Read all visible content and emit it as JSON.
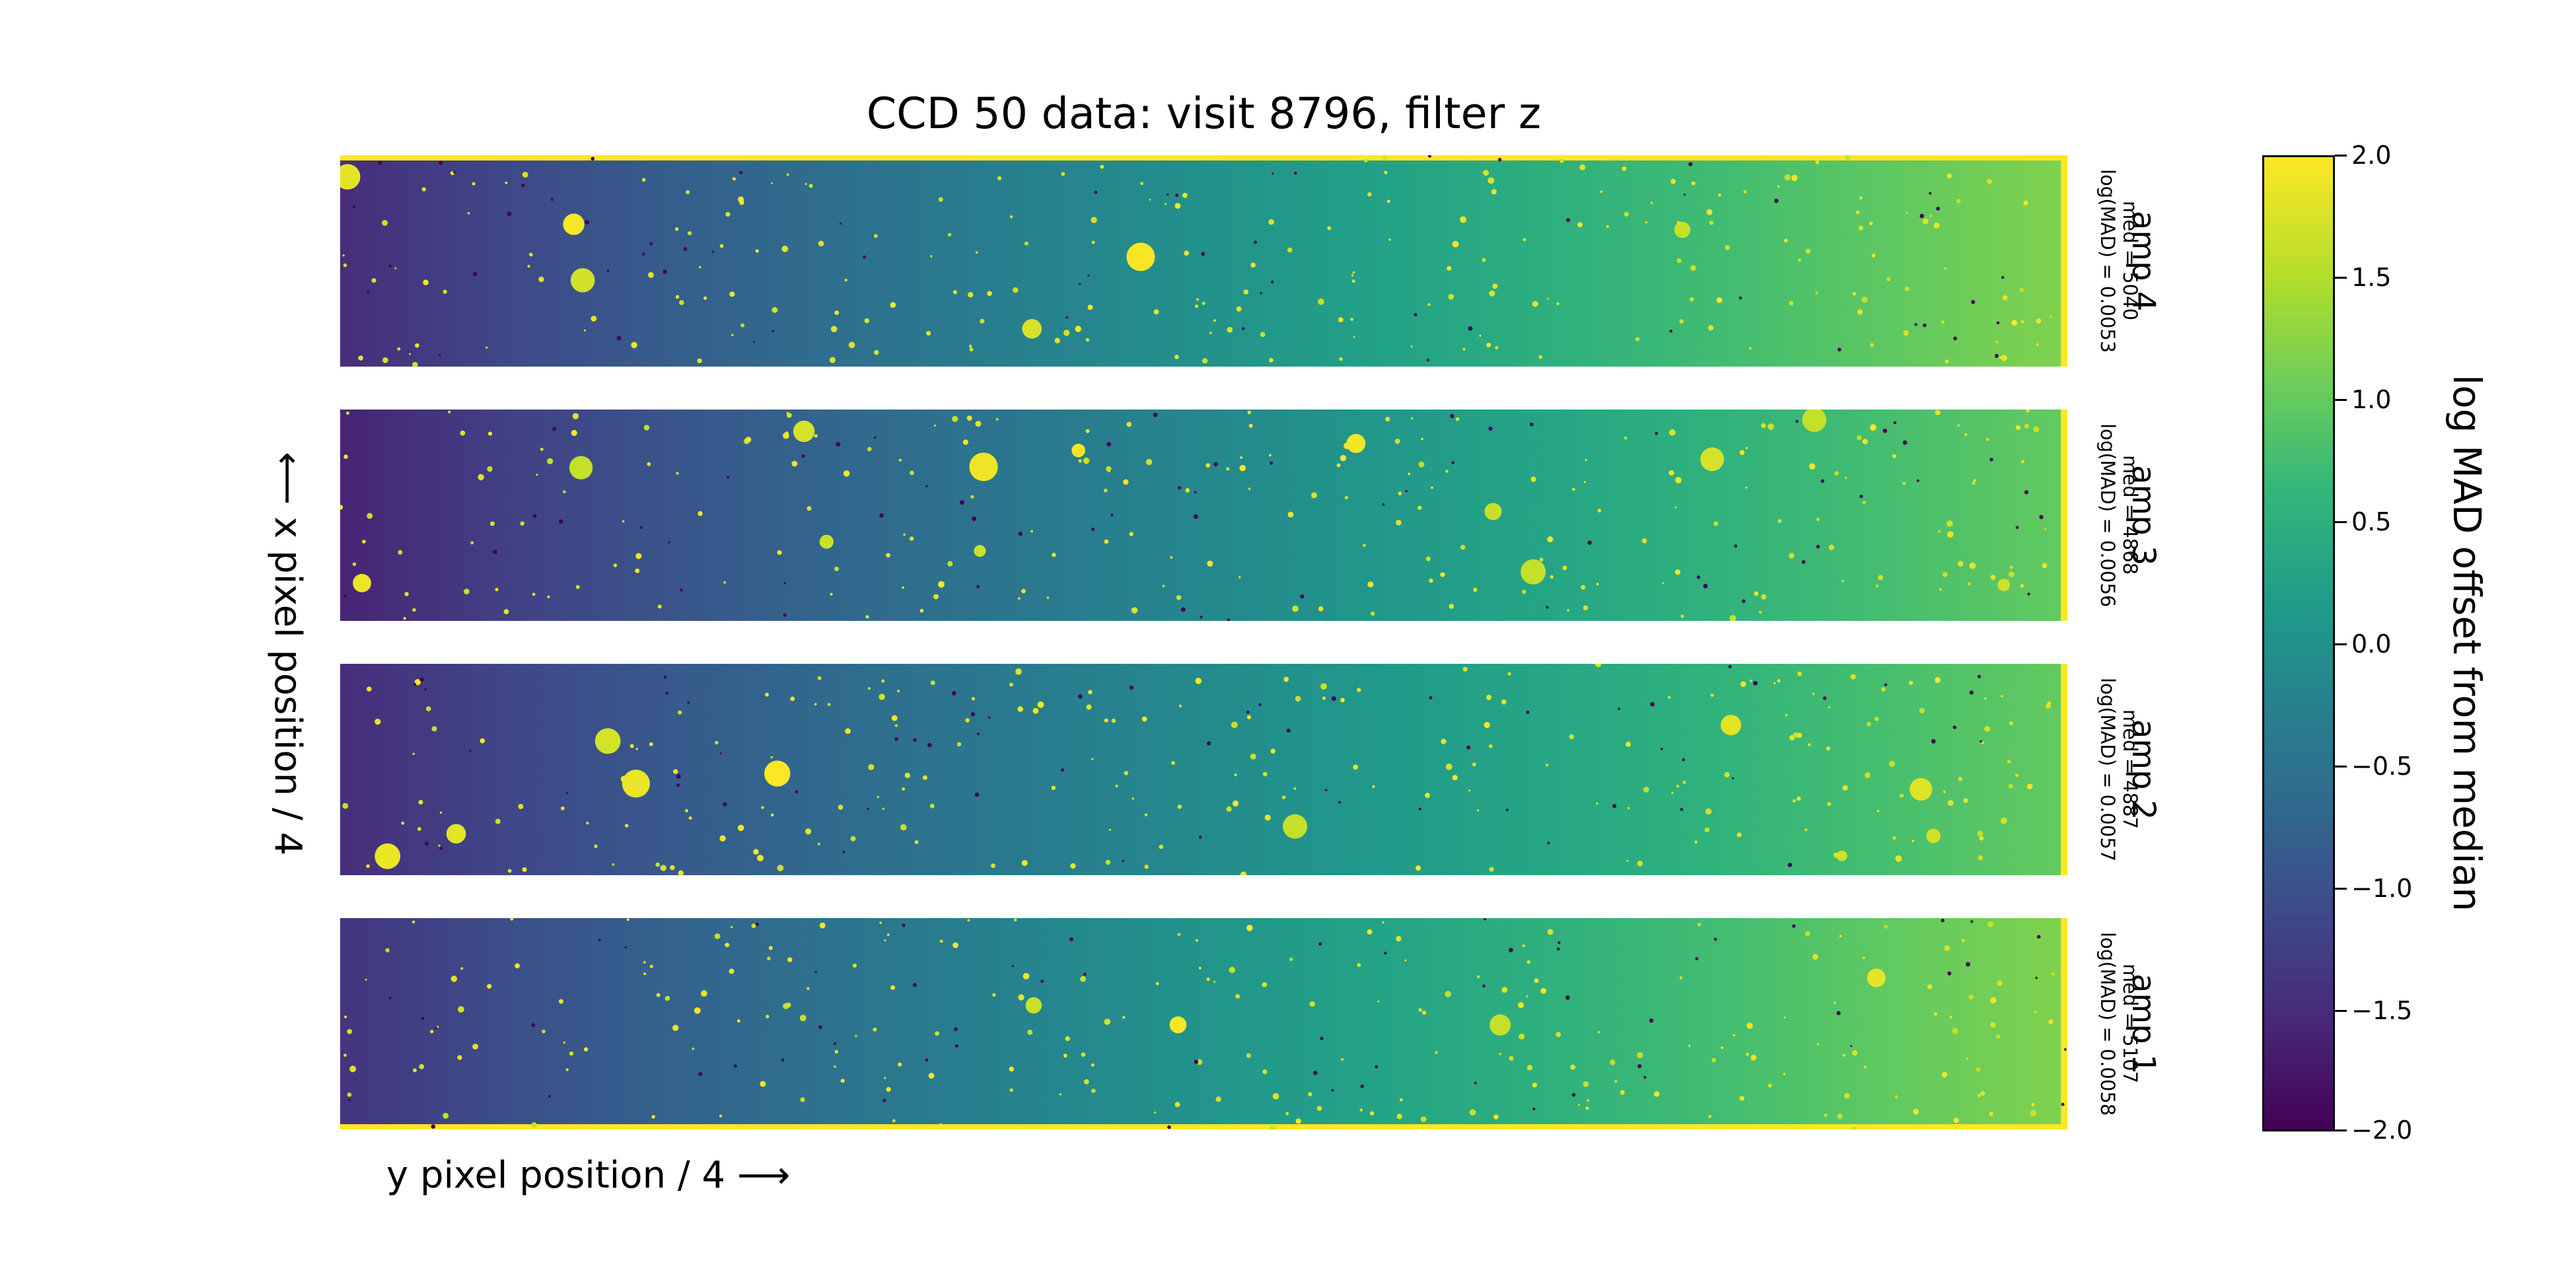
{
  "chart_data": {
    "type": "heatmap",
    "title": "CCD 50 data: visit 8796, filter z",
    "xlabel": "y pixel position / 4 ⟶",
    "ylabel": "⟵ x pixel position / 4",
    "colormap": "viridis",
    "colorbar": {
      "label": "log MAD offset from median",
      "range": [
        -2.0,
        2.0
      ],
      "ticks": [
        2.0,
        1.5,
        1.0,
        0.5,
        0.0,
        -0.5,
        -1.0,
        -1.5,
        -2.0
      ],
      "tick_labels": [
        "2.0",
        "1.5",
        "1.0",
        "0.5",
        "0.0",
        "−0.5",
        "−1.0",
        "−1.5",
        "−2.0"
      ]
    },
    "panels": [
      {
        "name": "amp 4",
        "med_label": "med = 5040",
        "mad_label": "log(MAD) = 0.0053",
        "med": 5040,
        "log_mad": 0.0053,
        "gradient": [
          -1.5,
          1.2
        ]
      },
      {
        "name": "amp 3",
        "med_label": "med = 4868",
        "mad_label": "log(MAD) = 0.0056",
        "med": 4868,
        "log_mad": 0.0056,
        "gradient": [
          -1.6,
          1.0
        ]
      },
      {
        "name": "amp 2",
        "med_label": "med = 4887",
        "mad_label": "log(MAD) = 0.0057",
        "med": 4887,
        "log_mad": 0.0057,
        "gradient": [
          -1.5,
          1.0
        ]
      },
      {
        "name": "amp 1",
        "med_label": "med = 5107",
        "mad_label": "log(MAD) = 0.0058",
        "med": 5107,
        "log_mad": 0.0058,
        "gradient": [
          -1.4,
          1.2
        ]
      }
    ]
  }
}
